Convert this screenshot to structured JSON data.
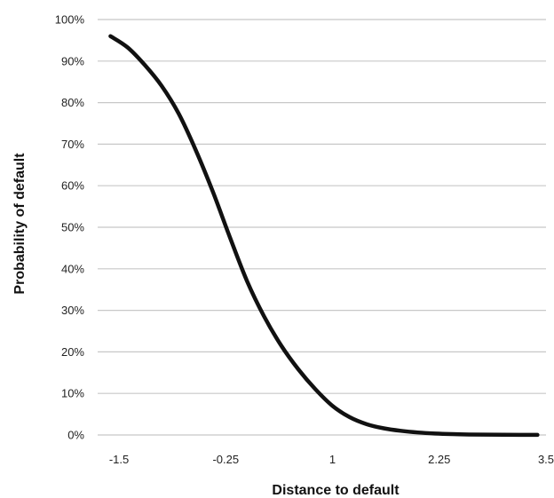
{
  "chart_data": {
    "type": "line",
    "title": "",
    "xlabel": "Distance to default",
    "ylabel": "Probability of default",
    "xlim": [
      -1.75,
      3.5
    ],
    "ylim": [
      0,
      100
    ],
    "x_ticks": [
      -1.5,
      -0.25,
      1,
      2.25,
      3.5
    ],
    "x_tick_labels": [
      "-1.5",
      "-0.25",
      "1",
      "2.25",
      "3.5"
    ],
    "y_ticks": [
      0,
      10,
      20,
      30,
      40,
      50,
      60,
      70,
      80,
      90,
      100
    ],
    "y_tick_labels": [
      "0%",
      "10%",
      "20%",
      "30%",
      "40%",
      "50%",
      "60%",
      "70%",
      "80%",
      "90%",
      "100%"
    ],
    "grid": true,
    "series": [
      {
        "x": [
          -1.6,
          -1.4,
          -1.2,
          -1.0,
          -0.8,
          -0.6,
          -0.4,
          -0.2,
          0.0,
          0.2,
          0.4,
          0.6,
          0.8,
          1.0,
          1.2,
          1.4,
          1.6,
          1.8,
          2.0,
          2.2,
          2.4,
          2.6,
          2.8,
          3.0,
          3.2,
          3.4
        ],
        "values": [
          96,
          93.3,
          89.1,
          84,
          77.3,
          68.5,
          58.5,
          47.5,
          37,
          28.5,
          21.5,
          15.8,
          11,
          7,
          4.3,
          2.6,
          1.6,
          1,
          0.6,
          0.35,
          0.2,
          0.12,
          0.08,
          0.05,
          0.03,
          0.02
        ]
      }
    ]
  }
}
